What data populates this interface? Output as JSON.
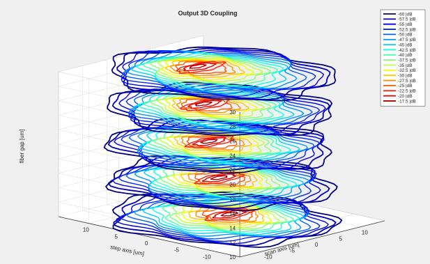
{
  "chart_data": {
    "type": "contour3d",
    "title": "Output 3D Coupling",
    "xlabel": "scan axis [um]",
    "ylabel": "step axis [um]",
    "zlabel": "fiber gap [um]",
    "xlim": [
      -15,
      15
    ],
    "ylim": [
      -15,
      15
    ],
    "zlim": [
      10,
      30
    ],
    "x_ticks": [
      "-10",
      "-5",
      "0",
      "5",
      "10"
    ],
    "y_ticks": [
      "10",
      "5",
      "0",
      "-5",
      "-10"
    ],
    "z_ticks": [
      "10",
      "12",
      "14",
      "16",
      "18",
      "20",
      "22",
      "24",
      "26",
      "28",
      "30"
    ],
    "grid": true,
    "legend_position": "top-right",
    "legend_entries": [
      "-60 |dB",
      "-57.5 |dB",
      "-55 |dB",
      "-52.5 |dB",
      "-50 |dB",
      "-47.5 |dB",
      "-45 |dB",
      "-42.5 |dB",
      "-40 |dB",
      "-37.5 |dB",
      "-35 |dB",
      "-32.5 |dB",
      "-30 |dB",
      "-27.5 |dB",
      "-25 |dB",
      "-22.5 |dB",
      "-20 |dB",
      "-17.5 |dB"
    ],
    "legend_colors": [
      "#00007f",
      "#0000b8",
      "#0000f0",
      "#0028ff",
      "#0060ff",
      "#0098ff",
      "#00d0ff",
      "#14ffe2",
      "#4cffab",
      "#84ff73",
      "#bcff3b",
      "#f4ff03",
      "#ffc800",
      "#ff9000",
      "#ff5800",
      "#ff2000",
      "#e80000",
      "#b00000"
    ],
    "levels": [
      -60,
      -57.5,
      -55,
      -52.5,
      -50,
      -47.5,
      -45,
      -42.5,
      -40,
      -37.5,
      -35,
      -32.5,
      -30,
      -27.5,
      -25,
      -22.5,
      -20,
      -17.5
    ],
    "slices": [
      {
        "z": 10,
        "peak_x": 3,
        "peak_y": 1,
        "peak_db": -17.5
      },
      {
        "z": 15,
        "peak_x": 2,
        "peak_y": 2,
        "peak_db": -17.5
      },
      {
        "z": 20,
        "peak_x": 1,
        "peak_y": 3,
        "peak_db": -17.5
      },
      {
        "z": 25,
        "peak_x": 1,
        "peak_y": 4,
        "peak_db": -17.5
      },
      {
        "z": 30,
        "peak_x": 1,
        "peak_y": 5,
        "peak_db": -17.5
      }
    ]
  }
}
